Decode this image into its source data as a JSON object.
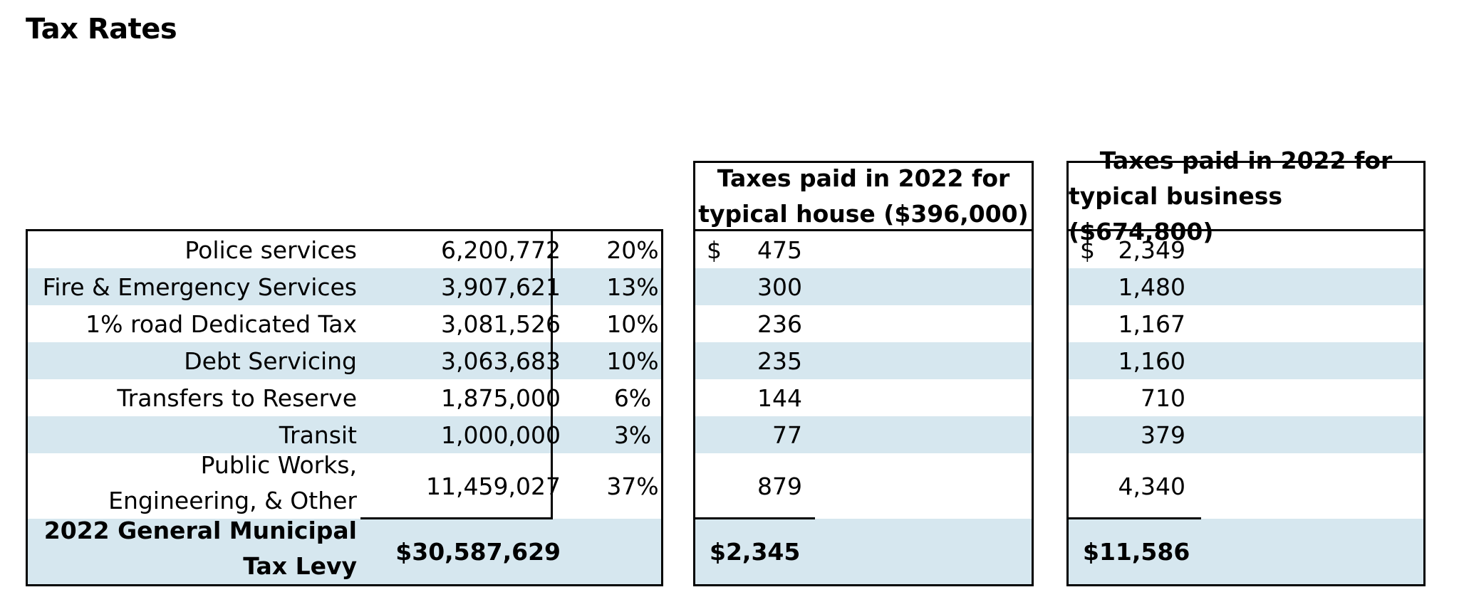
{
  "page": {
    "title": "Tax Rates"
  },
  "rows": [
    {
      "label": "Police services",
      "amount": "6,200,772",
      "percent": "20%",
      "house": "475",
      "business": "2,349"
    },
    {
      "label": "Fire & Emergency Services",
      "amount": "3,907,621",
      "percent": "13%",
      "house": "300",
      "business": "1,480"
    },
    {
      "label": "1% road Dedicated Tax",
      "amount": "3,081,526",
      "percent": "10%",
      "house": "236",
      "business": "1,167"
    },
    {
      "label": "Debt Servicing",
      "amount": "3,063,683",
      "percent": "10%",
      "house": "235",
      "business": "1,160"
    },
    {
      "label": "Transfers to Reserve",
      "amount": "1,875,000",
      "percent": "6%",
      "house": "144",
      "business": "710"
    },
    {
      "label": "Transit",
      "amount": "1,000,000",
      "percent": "3%",
      "house": "77",
      "business": "379"
    }
  ],
  "public_works": {
    "label_line1": "Public Works,",
    "label_line2": "Engineering, & Other",
    "amount": "11,459,027",
    "percent": "37%",
    "house": "879",
    "business": "4,340"
  },
  "totals": {
    "label_line1": "2022 General Municipal",
    "label_line2": "Tax Levy",
    "amount": "$30,587,629",
    "house": "$2,345",
    "business": "$11,586"
  },
  "house_header": {
    "line1": "Taxes paid in 2022 for",
    "line2": "typical house ($396,000)"
  },
  "business_header": {
    "line1": "Taxes paid in 2022 for",
    "line2": "typical business ($674,800)"
  },
  "currency_symbol": "$",
  "colors": {
    "shade": "#d6e7ef",
    "border": "#000000"
  }
}
